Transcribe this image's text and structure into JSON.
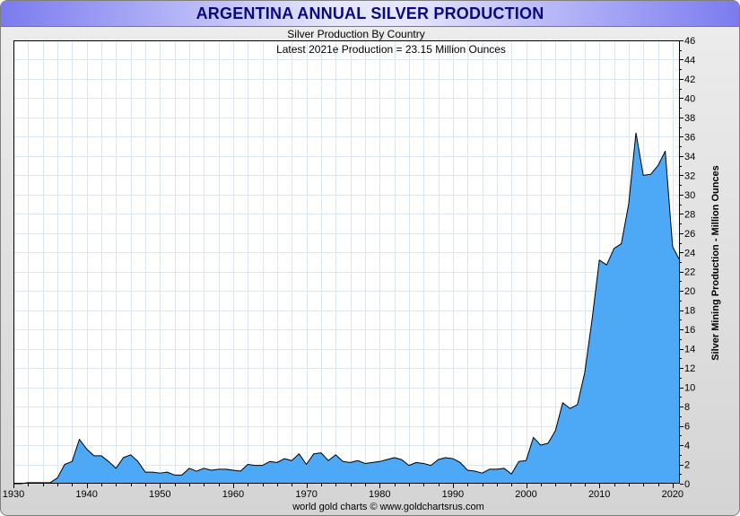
{
  "chart_data": {
    "type": "area",
    "title": "ARGENTINA ANNUAL SILVER PRODUCTION",
    "subtitle": "Silver Production By Country",
    "annotation": "Latest 2021e Production = 23.15 Million Ounces",
    "ylabel": "Silver Mining Production - Million Ounces",
    "xlabel": "",
    "credit": "world gold charts © www.goldchartsrus.com",
    "xlim": [
      1930,
      2021
    ],
    "ylim": [
      0,
      46
    ],
    "x_ticks": [
      1930,
      1940,
      1950,
      1960,
      1970,
      1980,
      1990,
      2000,
      2010,
      2020
    ],
    "y_ticks": [
      0,
      2,
      4,
      6,
      8,
      10,
      12,
      14,
      16,
      18,
      20,
      22,
      24,
      26,
      28,
      30,
      32,
      34,
      36,
      38,
      40,
      42,
      44,
      46
    ],
    "grid": true,
    "fill_color": "#4da8f5",
    "line_color": "#000000",
    "x": [
      1930,
      1931,
      1932,
      1933,
      1934,
      1935,
      1936,
      1937,
      1938,
      1939,
      1940,
      1941,
      1942,
      1943,
      1944,
      1945,
      1946,
      1947,
      1948,
      1949,
      1950,
      1951,
      1952,
      1953,
      1954,
      1955,
      1956,
      1957,
      1958,
      1959,
      1960,
      1961,
      1962,
      1963,
      1964,
      1965,
      1966,
      1967,
      1968,
      1969,
      1970,
      1971,
      1972,
      1973,
      1974,
      1975,
      1976,
      1977,
      1978,
      1979,
      1980,
      1981,
      1982,
      1983,
      1984,
      1985,
      1986,
      1987,
      1988,
      1989,
      1990,
      1991,
      1992,
      1993,
      1994,
      1995,
      1996,
      1997,
      1998,
      1999,
      2000,
      2001,
      2002,
      2003,
      2004,
      2005,
      2006,
      2007,
      2008,
      2009,
      2010,
      2011,
      2012,
      2013,
      2014,
      2015,
      2016,
      2017,
      2018,
      2019,
      2020,
      2021
    ],
    "values": [
      0.0,
      0.0,
      0.1,
      0.1,
      0.1,
      0.1,
      0.6,
      2.0,
      2.3,
      4.6,
      3.6,
      2.9,
      2.9,
      2.3,
      1.6,
      2.7,
      3.0,
      2.3,
      1.2,
      1.2,
      1.1,
      1.2,
      0.9,
      0.9,
      1.6,
      1.3,
      1.6,
      1.4,
      1.5,
      1.5,
      1.4,
      1.3,
      2.0,
      1.9,
      1.9,
      2.3,
      2.2,
      2.6,
      2.4,
      3.1,
      2.0,
      3.1,
      3.2,
      2.4,
      3.0,
      2.3,
      2.2,
      2.4,
      2.1,
      2.2,
      2.3,
      2.5,
      2.7,
      2.5,
      1.9,
      2.2,
      2.1,
      1.9,
      2.5,
      2.7,
      2.6,
      2.2,
      1.4,
      1.3,
      1.1,
      1.5,
      1.5,
      1.6,
      1.0,
      2.3,
      2.4,
      4.8,
      4.0,
      4.2,
      5.5,
      8.4,
      7.8,
      8.2,
      11.5,
      17.0,
      23.2,
      22.7,
      24.4,
      24.9,
      29.0,
      36.4,
      32.0,
      32.1,
      33.0,
      34.5,
      24.6,
      23.15
    ]
  }
}
